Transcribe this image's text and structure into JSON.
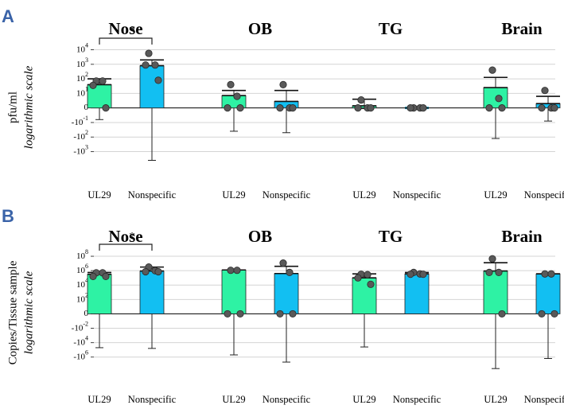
{
  "chart_data": [
    {
      "type": "bar",
      "panel_label": "A",
      "ylabel": "pfu/ml",
      "ylabel_note": "logarithmic scale",
      "scale": "symlog",
      "ytick_labels": [
        "10^4",
        "10^3",
        "10^2",
        "10^1",
        "0",
        "-10^-1",
        "-10^2",
        "-10^3"
      ],
      "ytick_positions": [
        4,
        3,
        2,
        1,
        0,
        -1,
        -2,
        -3
      ],
      "ylim": [
        -3.9,
        4.3
      ],
      "groups": [
        "Nose",
        "OB",
        "TG",
        "Brain"
      ],
      "categories": [
        "UL29",
        "Nonspecific"
      ],
      "colors": {
        "UL29": "#2ef2a4",
        "Nonspecific": "#12bff2"
      },
      "series": [
        {
          "group": "Nose",
          "name": "UL29",
          "mean": 1.6,
          "err_hi": 2.0,
          "err_lo": -0.8,
          "points": [
            1.85,
            1.85,
            1.55,
            0.0
          ]
        },
        {
          "group": "Nose",
          "name": "Nonspecific",
          "mean": 2.9,
          "err_hi": 3.3,
          "err_lo": -3.6,
          "points": [
            3.75,
            2.95,
            2.95,
            1.9
          ]
        },
        {
          "group": "OB",
          "name": "UL29",
          "mean": 0.85,
          "err_hi": 1.2,
          "err_lo": -1.6,
          "points": [
            1.6,
            0.8,
            0.0,
            0.0
          ]
        },
        {
          "group": "OB",
          "name": "Nonspecific",
          "mean": 0.45,
          "err_hi": 1.2,
          "err_lo": -1.7,
          "points": [
            1.6,
            0.0,
            0.0,
            0.0
          ]
        },
        {
          "group": "TG",
          "name": "UL29",
          "mean": 0.15,
          "err_hi": 0.6,
          "err_lo": -0.05,
          "points": [
            0.55,
            0.0,
            0.0,
            0.0
          ]
        },
        {
          "group": "TG",
          "name": "Nonspecific",
          "mean": 0.0,
          "err_hi": 0.0,
          "err_lo": 0.0,
          "points": [
            0.0,
            0.0,
            0.0,
            0.0
          ]
        },
        {
          "group": "Brain",
          "name": "UL29",
          "mean": 1.4,
          "err_hi": 2.1,
          "err_lo": -2.1,
          "points": [
            2.6,
            0.65,
            0.0,
            0.0
          ]
        },
        {
          "group": "Brain",
          "name": "Nonspecific",
          "mean": 0.3,
          "err_hi": 0.8,
          "err_lo": -0.9,
          "points": [
            1.2,
            0.0,
            0.0,
            0.0
          ]
        }
      ],
      "significance": {
        "group": "Nose",
        "label": "*"
      }
    },
    {
      "type": "bar",
      "panel_label": "B",
      "ylabel": "Copies/Tissue sample",
      "ylabel_note": "logarithmic scale",
      "scale": "symlog",
      "ytick_labels": [
        "10^8",
        "10^6",
        "10^4",
        "10^2",
        "0",
        "-10^-2",
        "-10^4",
        "-10^6"
      ],
      "ytick_positions": [
        8,
        6,
        4,
        2,
        0,
        -2,
        -4,
        -6
      ],
      "ylim": [
        -7.8,
        9.0
      ],
      "groups": [
        "Nose",
        "OB",
        "TG",
        "Brain"
      ],
      "categories": [
        "UL29",
        "Nonspecific"
      ],
      "colors": {
        "UL29": "#2ef2a4",
        "Nonspecific": "#12bff2"
      },
      "series": [
        {
          "group": "Nose",
          "name": "UL29",
          "mean": 5.5,
          "err_hi": 5.75,
          "err_lo": -4.7,
          "points": [
            5.7,
            5.7,
            5.2,
            5.2
          ]
        },
        {
          "group": "Nose",
          "name": "Nonspecific",
          "mean": 5.95,
          "err_hi": 6.5,
          "err_lo": -4.8,
          "points": [
            6.5,
            6.0,
            5.85,
            5.85
          ]
        },
        {
          "group": "OB",
          "name": "UL29",
          "mean": 6.1,
          "err_hi": 6.1,
          "err_lo": -5.7,
          "points": [
            6.05,
            6.05,
            0.0,
            0.0
          ]
        },
        {
          "group": "OB",
          "name": "Nonspecific",
          "mean": 5.6,
          "err_hi": 6.6,
          "err_lo": -6.7,
          "points": [
            7.05,
            5.75,
            0.0,
            0.0
          ]
        },
        {
          "group": "TG",
          "name": "UL29",
          "mean": 5.0,
          "err_hi": 5.55,
          "err_lo": -4.6,
          "points": [
            5.5,
            5.45,
            5.0,
            4.1
          ]
        },
        {
          "group": "TG",
          "name": "Nonspecific",
          "mean": 5.55,
          "err_hi": 5.75,
          "err_lo": 5.35,
          "points": [
            5.75,
            5.55,
            5.5,
            5.5
          ]
        },
        {
          "group": "Brain",
          "name": "UL29",
          "mean": 5.95,
          "err_hi": 7.1,
          "err_lo": -7.6,
          "points": [
            7.65,
            5.75,
            5.75,
            0.0
          ]
        },
        {
          "group": "Brain",
          "name": "Nonspecific",
          "mean": 5.55,
          "err_hi": 5.55,
          "err_lo": -6.2,
          "points": [
            5.55,
            5.55,
            0.0,
            0.0
          ]
        }
      ],
      "significance": {
        "group": "Nose",
        "label": "*"
      }
    }
  ]
}
